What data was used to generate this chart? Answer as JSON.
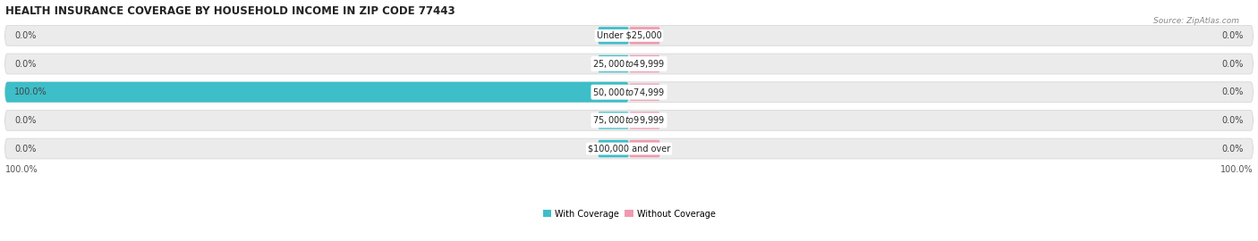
{
  "title": "HEALTH INSURANCE COVERAGE BY HOUSEHOLD INCOME IN ZIP CODE 77443",
  "source": "Source: ZipAtlas.com",
  "categories": [
    "Under $25,000",
    "$25,000 to $49,999",
    "$50,000 to $74,999",
    "$75,000 to $99,999",
    "$100,000 and over"
  ],
  "with_coverage": [
    0.0,
    0.0,
    100.0,
    0.0,
    0.0
  ],
  "without_coverage": [
    0.0,
    0.0,
    0.0,
    0.0,
    0.0
  ],
  "color_with": "#3dbec8",
  "color_without": "#f09ab0",
  "bar_bg_color": "#ebebeb",
  "bar_bg_edge": "#d8d8d8",
  "figsize": [
    14.06,
    2.7
  ],
  "dpi": 100,
  "title_fontsize": 8.5,
  "label_fontsize": 7.0,
  "tick_fontsize": 7.0,
  "legend_fontsize": 7.0,
  "source_fontsize": 6.5
}
